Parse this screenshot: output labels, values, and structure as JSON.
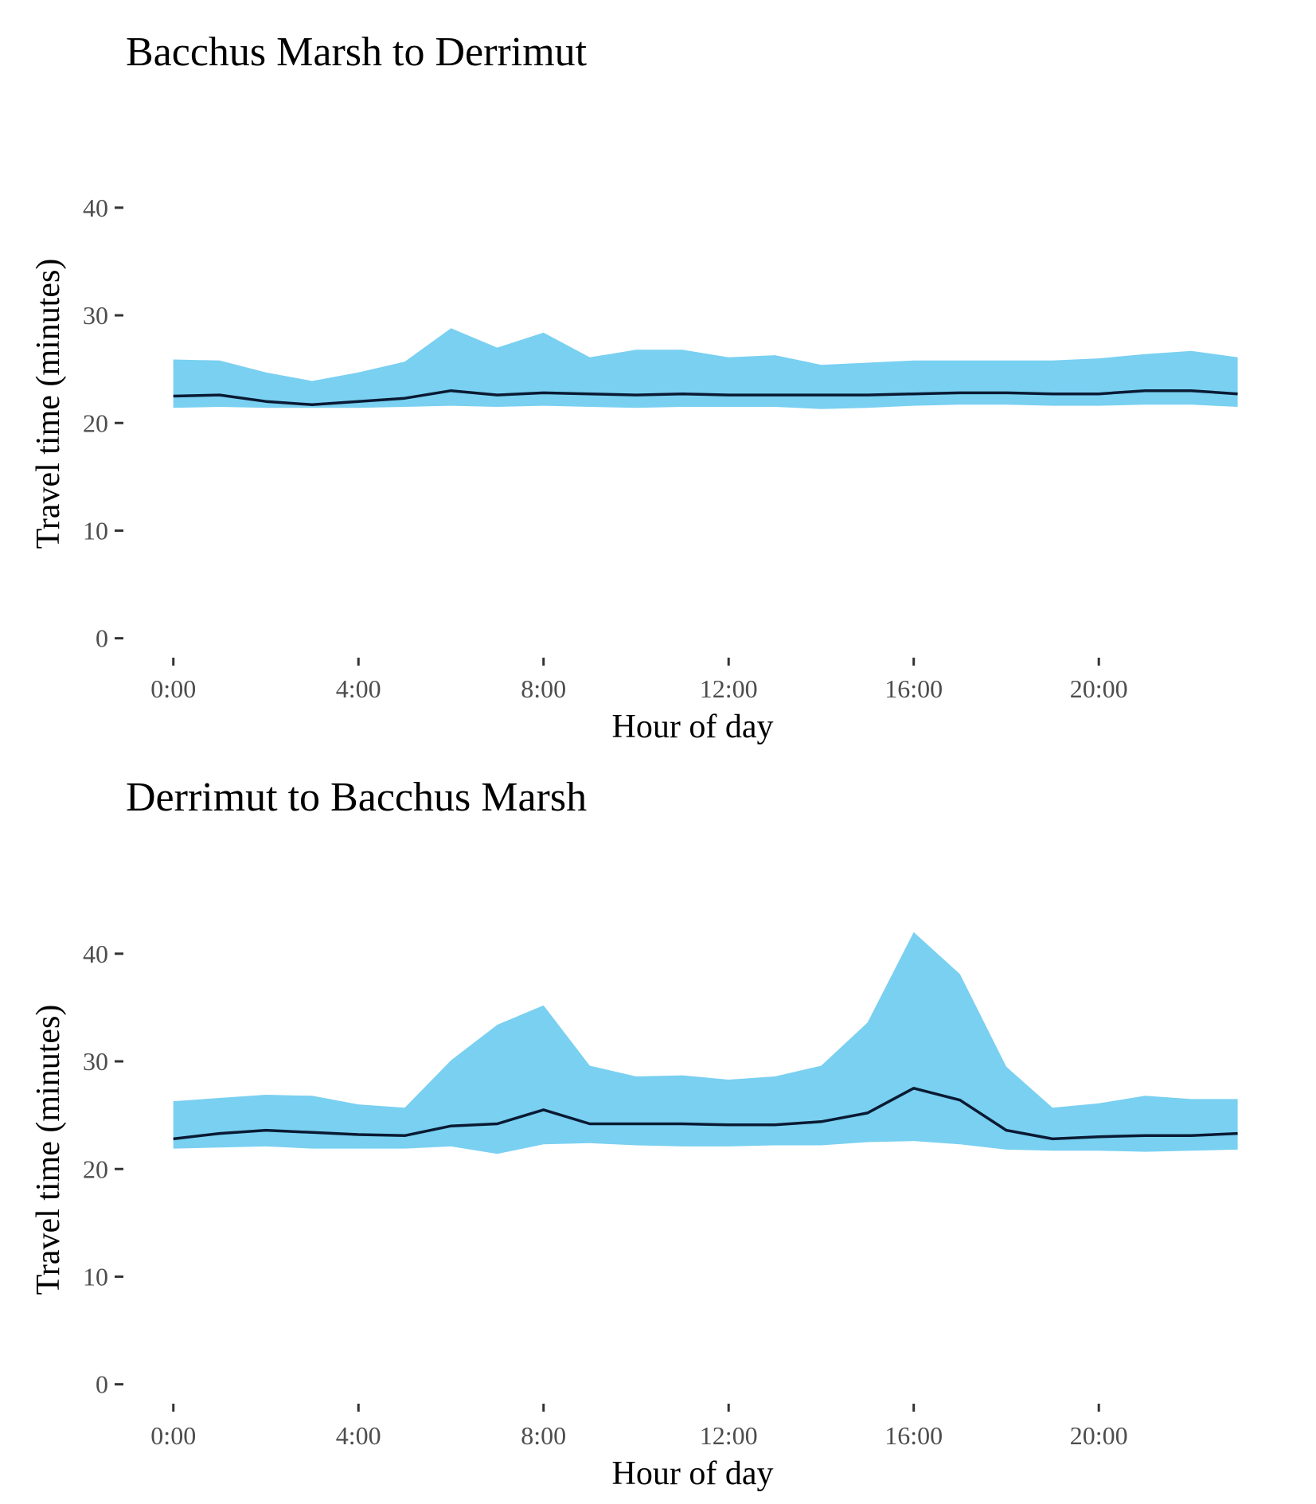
{
  "colors": {
    "band": "#79d0f1",
    "line": "#0a1a33",
    "tick_label": "#4d4d4d"
  },
  "chart_data": [
    {
      "type": "area",
      "title": "Bacchus Marsh to Derrimut",
      "xlabel": "Hour of day",
      "ylabel": "Travel time (minutes)",
      "x": [
        0,
        1,
        2,
        3,
        4,
        5,
        6,
        7,
        8,
        9,
        10,
        11,
        12,
        13,
        14,
        15,
        16,
        17,
        18,
        19,
        20,
        21,
        22,
        23
      ],
      "xticks": [
        0,
        4,
        8,
        12,
        16,
        20
      ],
      "xtick_labels": [
        "0:00",
        "4:00",
        "8:00",
        "12:00",
        "16:00",
        "20:00"
      ],
      "yticks": [
        0,
        10,
        20,
        30,
        40
      ],
      "ytick_labels": [
        "0",
        "10",
        "20",
        "30",
        "40"
      ],
      "xlim": [
        -1.2,
        23.3
      ],
      "ylim": [
        -1.8,
        44.5
      ],
      "grid": false,
      "series": [
        {
          "role": "band-upper",
          "values": [
            25.9,
            25.8,
            24.7,
            23.9,
            24.7,
            25.7,
            28.8,
            27.0,
            28.4,
            26.1,
            26.8,
            26.8,
            26.1,
            26.3,
            25.4,
            25.6,
            25.8,
            25.8,
            25.8,
            25.8,
            26.0,
            26.4,
            26.7,
            26.1
          ]
        },
        {
          "role": "band-lower",
          "values": [
            21.4,
            21.5,
            21.4,
            21.4,
            21.4,
            21.5,
            21.6,
            21.5,
            21.6,
            21.5,
            21.4,
            21.5,
            21.5,
            21.5,
            21.3,
            21.4,
            21.6,
            21.7,
            21.7,
            21.6,
            21.6,
            21.7,
            21.7,
            21.5
          ]
        },
        {
          "role": "median",
          "values": [
            22.5,
            22.6,
            22.0,
            21.7,
            22.0,
            22.3,
            23.0,
            22.6,
            22.8,
            22.7,
            22.6,
            22.7,
            22.6,
            22.6,
            22.6,
            22.6,
            22.7,
            22.8,
            22.8,
            22.7,
            22.7,
            23.0,
            23.0,
            22.7
          ]
        }
      ]
    },
    {
      "type": "area",
      "title": "Derrimut to Bacchus Marsh",
      "xlabel": "Hour of day",
      "ylabel": "Travel time (minutes)",
      "x": [
        0,
        1,
        2,
        3,
        4,
        5,
        6,
        7,
        8,
        9,
        10,
        11,
        12,
        13,
        14,
        15,
        16,
        17,
        18,
        19,
        20,
        21,
        22,
        23
      ],
      "xticks": [
        0,
        4,
        8,
        12,
        16,
        20
      ],
      "xtick_labels": [
        "0:00",
        "4:00",
        "8:00",
        "12:00",
        "16:00",
        "20:00"
      ],
      "yticks": [
        0,
        10,
        20,
        30,
        40
      ],
      "ytick_labels": [
        "0",
        "10",
        "20",
        "30",
        "40"
      ],
      "xlim": [
        -1.2,
        23.3
      ],
      "ylim": [
        -1.8,
        44.5
      ],
      "grid": false,
      "series": [
        {
          "role": "band-upper",
          "values": [
            26.3,
            26.6,
            26.9,
            26.8,
            26.0,
            25.7,
            30.1,
            33.4,
            35.2,
            29.6,
            28.6,
            28.7,
            28.3,
            28.6,
            29.6,
            33.6,
            42.0,
            38.1,
            29.5,
            25.7,
            26.1,
            26.8,
            26.5,
            26.5
          ]
        },
        {
          "role": "band-lower",
          "values": [
            21.9,
            22.0,
            22.1,
            21.9,
            21.9,
            21.9,
            22.1,
            21.4,
            22.3,
            22.4,
            22.2,
            22.1,
            22.1,
            22.2,
            22.2,
            22.5,
            22.6,
            22.3,
            21.8,
            21.7,
            21.7,
            21.6,
            21.7,
            21.8
          ]
        },
        {
          "role": "median",
          "values": [
            22.8,
            23.3,
            23.6,
            23.4,
            23.2,
            23.1,
            24.0,
            24.2,
            25.5,
            24.2,
            24.2,
            24.2,
            24.1,
            24.1,
            24.4,
            25.2,
            27.5,
            26.4,
            23.6,
            22.8,
            23.0,
            23.1,
            23.1,
            23.3
          ]
        }
      ]
    }
  ]
}
